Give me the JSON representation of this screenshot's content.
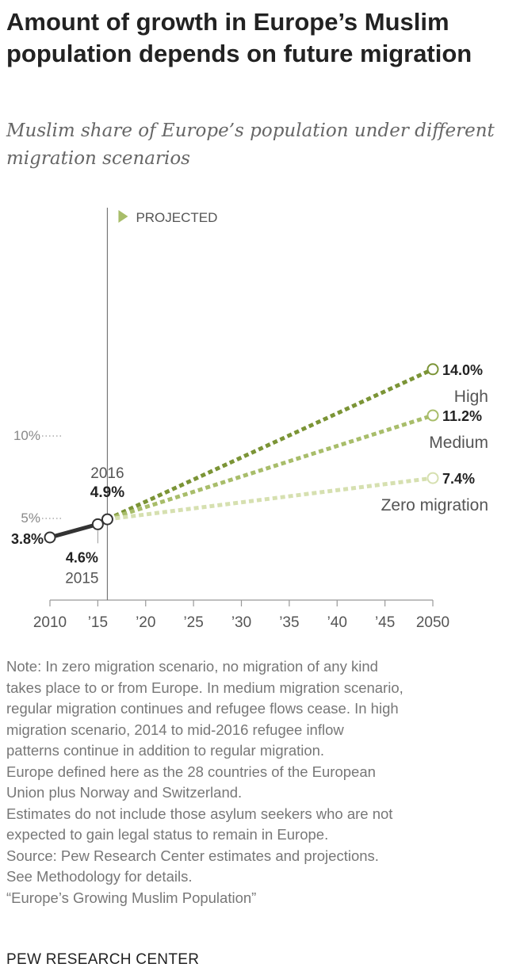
{
  "chart_data": {
    "type": "line",
    "title": "Amount of growth in Europe’s Muslim population depends on future migration",
    "subtitle": "Muslim share of Europe’s population under different migration scenarios",
    "projected_label": "PROJECTED",
    "x_ticks": [
      {
        "value": 2010,
        "label": "2010"
      },
      {
        "value": 2015,
        "label": "’15"
      },
      {
        "value": 2020,
        "label": "’20"
      },
      {
        "value": 2025,
        "label": "’25"
      },
      {
        "value": 2030,
        "label": "’30"
      },
      {
        "value": 2035,
        "label": "’35"
      },
      {
        "value": 2040,
        "label": "’40"
      },
      {
        "value": 2045,
        "label": "’45"
      },
      {
        "value": 2050,
        "label": "2050"
      }
    ],
    "y_ticks": [
      {
        "value": 5,
        "label": "5%"
      },
      {
        "value": 10,
        "label": "10%"
      }
    ],
    "xlim": [
      2010,
      2050
    ],
    "ylim": [
      0,
      14.5
    ],
    "projection_start": 2016,
    "historical": {
      "name": "Historical",
      "points": [
        {
          "x": 2010,
          "y": 3.8,
          "label": "3.8%"
        },
        {
          "x": 2015,
          "y": 4.6,
          "label": "4.6%",
          "year_label": "2015"
        },
        {
          "x": 2016,
          "y": 4.9,
          "label": "4.9%",
          "year_label": "2016"
        }
      ],
      "color": "#333333"
    },
    "series": [
      {
        "name": "High",
        "start": {
          "x": 2016,
          "y": 4.9
        },
        "end": {
          "x": 2050,
          "y": 14.0
        },
        "end_label": "14.0%",
        "color": "#7b9436"
      },
      {
        "name": "Medium",
        "start": {
          "x": 2016,
          "y": 4.9
        },
        "end": {
          "x": 2050,
          "y": 11.2
        },
        "end_label": "11.2%",
        "color": "#a8bd6a"
      },
      {
        "name": "Zero migration",
        "start": {
          "x": 2016,
          "y": 4.9
        },
        "end": {
          "x": 2050,
          "y": 7.4
        },
        "end_label": "7.4%",
        "color": "#d6e0b0"
      }
    ],
    "projected_marker_color": "#a8bd6a"
  },
  "notes": [
    "Note: In zero migration scenario, no migration of any kind",
    "takes place to or from Europe. In medium migration scenario,",
    "regular migration continues and refugee flows cease. In high",
    "migration scenario, 2014 to mid-2016 refugee inflow",
    "patterns continue in addition to regular migration.",
    "Europe defined here as the 28 countries of the European",
    "Union plus Norway and Switzerland.",
    "Estimates do not include those asylum seekers who are not",
    "expected to gain legal status to remain in Europe.",
    "Source: Pew Research Center estimates and projections.",
    "See Methodology for details.",
    "“Europe’s Growing Muslim Population”"
  ],
  "footer": "PEW RESEARCH CENTER"
}
